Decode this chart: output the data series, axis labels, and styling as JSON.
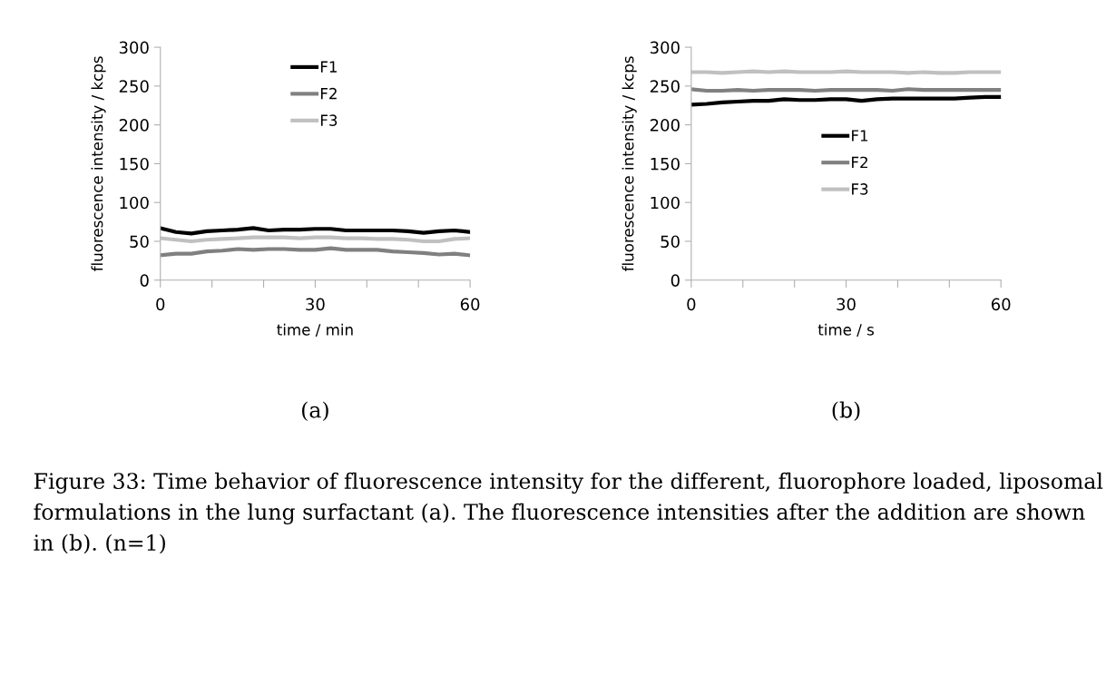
{
  "chart_data": [
    {
      "type": "line",
      "title": "(a)",
      "xlabel": "time / min",
      "ylabel": "fluorescence intensity / kcps",
      "x": [
        0,
        3,
        6,
        9,
        12,
        15,
        18,
        21,
        24,
        27,
        30,
        33,
        36,
        39,
        42,
        45,
        48,
        51,
        54,
        57,
        60
      ],
      "series": [
        {
          "name": "F1",
          "color": "#000000",
          "values": [
            67,
            62,
            60,
            63,
            64,
            65,
            67,
            64,
            65,
            65,
            66,
            66,
            64,
            64,
            64,
            64,
            63,
            61,
            63,
            64,
            62
          ]
        },
        {
          "name": "F2",
          "color": "#808080",
          "values": [
            32,
            34,
            34,
            37,
            38,
            40,
            39,
            40,
            40,
            39,
            39,
            41,
            39,
            39,
            39,
            37,
            36,
            35,
            33,
            34,
            32
          ]
        },
        {
          "name": "F3",
          "color": "#c0c0c0",
          "values": [
            54,
            52,
            50,
            52,
            53,
            54,
            55,
            55,
            55,
            54,
            55,
            55,
            54,
            54,
            53,
            53,
            52,
            50,
            50,
            53,
            54
          ]
        }
      ],
      "xlim": [
        0,
        60
      ],
      "xticks": [
        0,
        {
          "value": 10,
          "label": null
        },
        {
          "value": 20,
          "label": null
        },
        30,
        {
          "value": 40,
          "label": null
        },
        {
          "value": 50,
          "label": null
        },
        60
      ],
      "ylim": [
        0,
        300
      ],
      "yticks": [
        0,
        50,
        100,
        150,
        200,
        250,
        300
      ],
      "legend": "top",
      "grid": false,
      "marker": "none",
      "line_style": "solid",
      "annotations": [
        "Figure 33: Time behavior of fluorescence intensity for the different, fluorophore loaded, liposomal formulations in the lung surfactant (a). The fluorescence intensities after the addition are shown in (b). (n=1)"
      ]
    },
    {
      "type": "line",
      "title": "(b)",
      "xlabel": "time / s",
      "ylabel": "fluorescence intensity / kcps",
      "x": [
        0,
        3,
        6,
        9,
        12,
        15,
        18,
        21,
        24,
        27,
        30,
        33,
        36,
        39,
        42,
        45,
        48,
        51,
        54,
        57,
        60
      ],
      "series": [
        {
          "name": "F1",
          "color": "#000000",
          "values": [
            226,
            227,
            229,
            230,
            231,
            231,
            233,
            232,
            232,
            233,
            233,
            231,
            233,
            234,
            234,
            234,
            234,
            234,
            235,
            236,
            236
          ]
        },
        {
          "name": "F2",
          "color": "#808080",
          "values": [
            246,
            244,
            244,
            245,
            244,
            245,
            245,
            245,
            244,
            245,
            245,
            245,
            245,
            244,
            246,
            245,
            245,
            245,
            245,
            245,
            245
          ]
        },
        {
          "name": "F3",
          "color": "#c0c0c0",
          "values": [
            268,
            268,
            267,
            268,
            269,
            268,
            269,
            268,
            268,
            268,
            269,
            268,
            268,
            268,
            267,
            268,
            267,
            267,
            268,
            268,
            268
          ]
        }
      ],
      "xlim": [
        0,
        60
      ],
      "xticks": [
        0,
        {
          "value": 10,
          "label": null
        },
        {
          "value": 20,
          "label": null
        },
        30,
        {
          "value": 40,
          "label": null
        },
        {
          "value": 50,
          "label": null
        },
        60
      ],
      "ylim": [
        0,
        300
      ],
      "yticks": [
        0,
        50,
        100,
        150,
        200,
        250,
        300
      ],
      "legend": "center",
      "grid": false,
      "marker": "none",
      "line_style": "solid"
    }
  ]
}
